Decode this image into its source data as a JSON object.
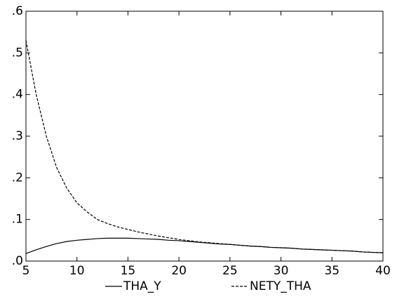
{
  "chart_data": {
    "type": "line",
    "x": [
      5,
      6,
      7,
      8,
      9,
      10,
      11,
      12,
      13,
      14,
      15,
      16,
      17,
      18,
      19,
      20,
      21,
      22,
      23,
      24,
      25,
      26,
      27,
      28,
      29,
      30,
      31,
      32,
      33,
      34,
      35,
      36,
      37,
      38,
      39,
      40
    ],
    "series": [
      {
        "name": "THA_Y",
        "color": "#000000",
        "style": "solid",
        "values": [
          0.018,
          0.027,
          0.035,
          0.042,
          0.047,
          0.05,
          0.052,
          0.054,
          0.055,
          0.055,
          0.055,
          0.054,
          0.053,
          0.052,
          0.05,
          0.049,
          0.047,
          0.045,
          0.043,
          0.041,
          0.04,
          0.038,
          0.036,
          0.035,
          0.033,
          0.032,
          0.031,
          0.029,
          0.028,
          0.027,
          0.026,
          0.025,
          0.024,
          0.022,
          0.021,
          0.02
        ]
      },
      {
        "name": "NETY_THA",
        "color": "#000000",
        "style": "dashed",
        "values": [
          0.53,
          0.4,
          0.3,
          0.225,
          0.175,
          0.14,
          0.118,
          0.1,
          0.09,
          0.082,
          0.076,
          0.07,
          0.065,
          0.06,
          0.056,
          0.052,
          0.049,
          0.046,
          0.044,
          0.042,
          0.04,
          0.038,
          0.036,
          0.035,
          0.033,
          0.032,
          0.031,
          0.029,
          0.028,
          0.027,
          0.026,
          0.025,
          0.024,
          0.022,
          0.021,
          0.02
        ]
      }
    ],
    "xlim": [
      5,
      40
    ],
    "xticks": [
      5,
      10,
      15,
      20,
      25,
      30,
      35,
      40
    ],
    "ylim": [
      0,
      0.6
    ],
    "yticks": [
      {
        "value": 0,
        "label": ".0"
      },
      {
        "value": 0.1,
        "label": ".1"
      },
      {
        "value": 0.2,
        "label": ".2"
      },
      {
        "value": 0.3,
        "label": ".3"
      },
      {
        "value": 0.4,
        "label": ".4"
      },
      {
        "value": 0.5,
        "label": ".5"
      },
      {
        "value": 0.6,
        "label": ".6"
      }
    ],
    "legend": "bottom"
  }
}
